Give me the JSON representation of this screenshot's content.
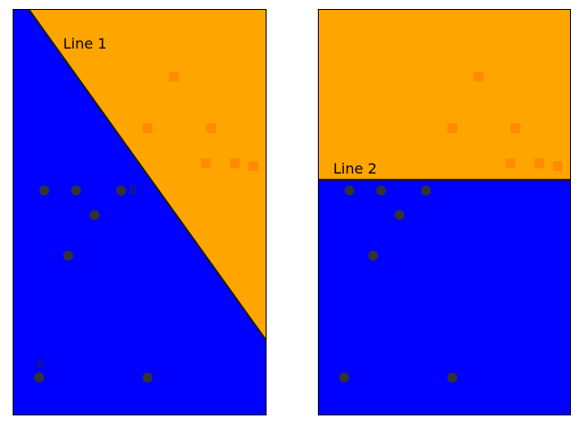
{
  "chart_data": [
    {
      "type": "scatter",
      "title": "",
      "xlabel": "",
      "ylabel": "",
      "grid": false,
      "boundary": {
        "label": "Line 1",
        "points": [
          [
            0.6,
            15
          ],
          [
            9.6,
            2.75
          ]
        ]
      },
      "regions": {
        "above": "#ffa500",
        "below": "#0000ff"
      },
      "series": [
        {
          "marker": "circle",
          "color": "#333333",
          "x": [
            1.2,
            2.4,
            4.1,
            3.1,
            2.1,
            1.0,
            5.1
          ],
          "y": [
            8.3,
            8.3,
            8.3,
            7.4,
            5.9,
            1.4,
            1.4
          ]
        },
        {
          "marker": "square",
          "color": "#ff8c00",
          "x": [
            6.1,
            5.1,
            7.5,
            7.3,
            8.4,
            9.1
          ],
          "y": [
            12.5,
            10.6,
            10.6,
            9.3,
            9.3,
            9.2
          ]
        }
      ],
      "point_labels": [
        {
          "text": "B",
          "x": 4.4,
          "y": 8.2
        },
        {
          "text": "A",
          "x": 0.9,
          "y": 1.8
        }
      ]
    },
    {
      "type": "scatter",
      "title": "",
      "xlabel": "",
      "ylabel": "",
      "grid": false,
      "boundary": {
        "label": "Line 2",
        "points": [
          [
            0,
            8.7
          ],
          [
            9.6,
            8.7
          ]
        ]
      },
      "regions": {
        "above": "#ffa500",
        "below": "#0000ff"
      },
      "series": [
        {
          "marker": "circle",
          "color": "#333333",
          "x": [
            1.2,
            2.4,
            4.1,
            3.1,
            2.1,
            1.0,
            5.1
          ],
          "y": [
            8.3,
            8.3,
            8.3,
            7.4,
            5.9,
            1.4,
            1.4
          ]
        },
        {
          "marker": "square",
          "color": "#ff8c00",
          "x": [
            6.1,
            5.1,
            7.5,
            7.3,
            8.4,
            9.1
          ],
          "y": [
            12.5,
            10.6,
            10.6,
            9.3,
            9.3,
            9.2
          ]
        }
      ],
      "point_labels": []
    }
  ]
}
